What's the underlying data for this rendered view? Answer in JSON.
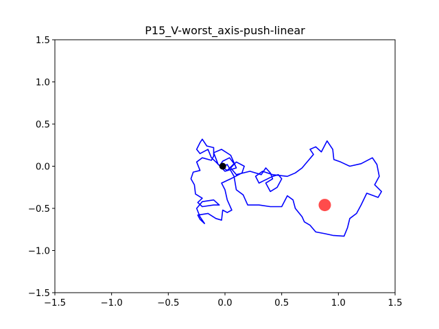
{
  "chart_data": {
    "type": "scatter",
    "title": "P15_V-worst_axis-push-linear",
    "xlabel": "",
    "ylabel": "",
    "xlim": [
      -1.5,
      1.5
    ],
    "ylim": [
      -1.5,
      1.5
    ],
    "x_ticks": [
      -1.5,
      -1.0,
      -0.5,
      0.0,
      0.5,
      1.0,
      1.5
    ],
    "x_tick_labels": [
      "−1.5",
      "−1.0",
      "−0.5",
      "0.0",
      "0.5",
      "1.0",
      "1.5"
    ],
    "y_ticks": [
      -1.5,
      -1.0,
      -0.5,
      0.0,
      0.5,
      1.0,
      1.5
    ],
    "y_tick_labels": [
      "−1.5",
      "−1.0",
      "−0.5",
      "0.0",
      "0.5",
      "1.0",
      "1.5"
    ],
    "grid": false,
    "series": [
      {
        "kind": "path",
        "color": "#0000ff",
        "points": [
          [
            -0.05,
            0.0
          ],
          [
            -0.02,
            0.06
          ],
          [
            0.04,
            0.1
          ],
          [
            0.08,
            0.03
          ],
          [
            0.02,
            -0.05
          ],
          [
            -0.06,
            0.02
          ],
          [
            -0.1,
            0.16
          ],
          [
            -0.03,
            0.2
          ],
          [
            0.05,
            0.13
          ],
          [
            0.1,
            -0.02
          ],
          [
            0.0,
            -0.06
          ],
          [
            -0.08,
            0.05
          ],
          [
            -0.12,
            0.1
          ],
          [
            -0.15,
            0.2
          ],
          [
            -0.22,
            0.15
          ],
          [
            -0.25,
            0.2
          ],
          [
            -0.22,
            0.28
          ],
          [
            -0.2,
            0.32
          ],
          [
            -0.16,
            0.24
          ],
          [
            -0.1,
            0.22
          ],
          [
            -0.1,
            0.12
          ],
          [
            -0.12,
            0.07
          ],
          [
            -0.2,
            0.1
          ],
          [
            -0.25,
            0.05
          ],
          [
            -0.22,
            -0.05
          ],
          [
            -0.28,
            -0.07
          ],
          [
            -0.3,
            -0.15
          ],
          [
            -0.27,
            -0.22
          ],
          [
            -0.26,
            -0.33
          ],
          [
            -0.2,
            -0.38
          ],
          [
            -0.24,
            -0.43
          ],
          [
            -0.2,
            -0.48
          ],
          [
            -0.1,
            -0.46
          ],
          [
            -0.05,
            -0.46
          ],
          [
            -0.1,
            -0.4
          ],
          [
            -0.2,
            -0.42
          ],
          [
            -0.25,
            -0.5
          ],
          [
            -0.22,
            -0.6
          ],
          [
            -0.18,
            -0.68
          ],
          [
            -0.22,
            -0.63
          ],
          [
            -0.24,
            -0.58
          ],
          [
            -0.15,
            -0.56
          ],
          [
            -0.08,
            -0.62
          ],
          [
            -0.03,
            -0.64
          ],
          [
            -0.02,
            -0.52
          ],
          [
            0.02,
            -0.55
          ],
          [
            0.06,
            -0.52
          ],
          [
            0.02,
            -0.4
          ],
          [
            0.0,
            -0.28
          ],
          [
            -0.03,
            -0.2
          ],
          [
            0.05,
            -0.15
          ],
          [
            0.15,
            -0.08
          ],
          [
            0.17,
            0.0
          ],
          [
            0.1,
            0.05
          ],
          [
            0.05,
            -0.02
          ],
          [
            0.1,
            -0.1
          ],
          [
            0.22,
            -0.06
          ],
          [
            0.32,
            -0.1
          ],
          [
            0.36,
            -0.02
          ],
          [
            0.4,
            -0.08
          ],
          [
            0.42,
            -0.15
          ],
          [
            0.36,
            -0.2
          ],
          [
            0.4,
            -0.3
          ],
          [
            0.46,
            -0.25
          ],
          [
            0.5,
            -0.15
          ],
          [
            0.47,
            -0.1
          ],
          [
            0.42,
            -0.12
          ],
          [
            0.36,
            -0.16
          ],
          [
            0.3,
            -0.2
          ],
          [
            0.27,
            -0.12
          ],
          [
            0.33,
            -0.06
          ],
          [
            0.42,
            -0.1
          ],
          [
            0.55,
            -0.12
          ],
          [
            0.62,
            -0.08
          ],
          [
            0.68,
            -0.02
          ],
          [
            0.73,
            0.06
          ],
          [
            0.78,
            0.14
          ],
          [
            0.75,
            0.2
          ],
          [
            0.8,
            0.23
          ],
          [
            0.85,
            0.17
          ],
          [
            0.9,
            0.3
          ],
          [
            0.95,
            0.2
          ],
          [
            0.96,
            0.08
          ],
          [
            1.02,
            0.05
          ],
          [
            1.1,
            0.0
          ],
          [
            1.2,
            0.03
          ],
          [
            1.3,
            0.1
          ],
          [
            1.34,
            0.02
          ],
          [
            1.36,
            -0.12
          ],
          [
            1.32,
            -0.22
          ],
          [
            1.38,
            -0.3
          ],
          [
            1.35,
            -0.37
          ],
          [
            1.25,
            -0.32
          ],
          [
            1.2,
            -0.46
          ],
          [
            1.16,
            -0.56
          ],
          [
            1.1,
            -0.62
          ],
          [
            1.08,
            -0.73
          ],
          [
            1.05,
            -0.83
          ],
          [
            0.95,
            -0.82
          ],
          [
            0.88,
            -0.8
          ],
          [
            0.8,
            -0.78
          ],
          [
            0.75,
            -0.7
          ],
          [
            0.7,
            -0.66
          ],
          [
            0.68,
            -0.6
          ],
          [
            0.62,
            -0.5
          ],
          [
            0.6,
            -0.4
          ],
          [
            0.55,
            -0.35
          ],
          [
            0.5,
            -0.48
          ],
          [
            0.4,
            -0.48
          ],
          [
            0.3,
            -0.46
          ],
          [
            0.2,
            -0.46
          ],
          [
            0.16,
            -0.34
          ],
          [
            0.1,
            -0.28
          ],
          [
            0.08,
            -0.12
          ],
          [
            0.02,
            0.02
          ],
          [
            -0.03,
            -0.01
          ]
        ]
      }
    ],
    "markers": [
      {
        "name": "start",
        "x": -0.02,
        "y": 0.0,
        "color": "#000000"
      },
      {
        "name": "goal",
        "x": 0.88,
        "y": -0.46,
        "color": "#ff0000",
        "alpha": 0.7
      }
    ]
  }
}
